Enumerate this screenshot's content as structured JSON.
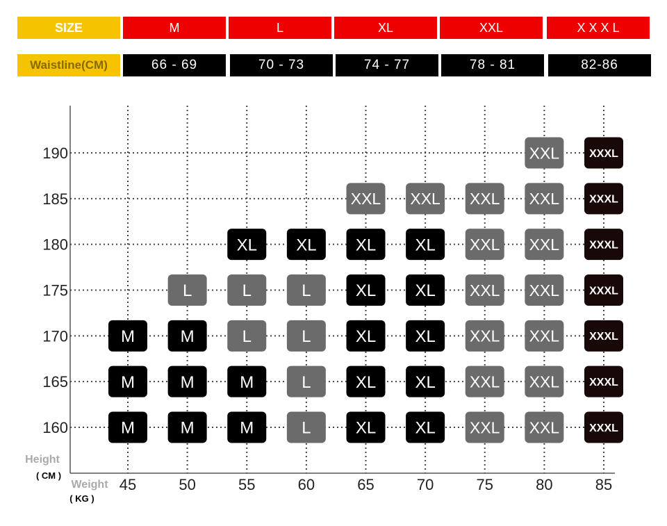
{
  "header": {
    "size_label": "SIZE",
    "waist_label": "Waistline(CM)",
    "sizes": [
      "M",
      "L",
      "XL",
      "XXL",
      "X X X L"
    ],
    "waists": [
      "66 - 69",
      "70 - 73",
      "74 - 77",
      "78 - 81",
      "82-86"
    ]
  },
  "colors": {
    "header_yellow": "#f5c400",
    "header_red": "#ee0000",
    "header_black": "#000000",
    "M": "#000000",
    "L": "#6b6b6b",
    "XL": "#000000",
    "XXL": "#6b6b6b",
    "XXXL": "#180808"
  },
  "chart_data": {
    "type": "table",
    "xlabel": "Weight",
    "xunit": "( KG )",
    "ylabel": "Height",
    "yunit": "( CM )",
    "x": [
      45,
      50,
      55,
      60,
      65,
      70,
      75,
      80,
      85
    ],
    "y": [
      160,
      165,
      170,
      175,
      180,
      185,
      190
    ],
    "grid": true,
    "cells": [
      {
        "x": 45,
        "y": 160,
        "size": "M"
      },
      {
        "x": 50,
        "y": 160,
        "size": "M"
      },
      {
        "x": 55,
        "y": 160,
        "size": "M"
      },
      {
        "x": 60,
        "y": 160,
        "size": "L"
      },
      {
        "x": 65,
        "y": 160,
        "size": "XL"
      },
      {
        "x": 70,
        "y": 160,
        "size": "XL"
      },
      {
        "x": 75,
        "y": 160,
        "size": "XXL"
      },
      {
        "x": 80,
        "y": 160,
        "size": "XXL"
      },
      {
        "x": 85,
        "y": 160,
        "size": "XXXL"
      },
      {
        "x": 45,
        "y": 165,
        "size": "M"
      },
      {
        "x": 50,
        "y": 165,
        "size": "M"
      },
      {
        "x": 55,
        "y": 165,
        "size": "M"
      },
      {
        "x": 60,
        "y": 165,
        "size": "L"
      },
      {
        "x": 65,
        "y": 165,
        "size": "XL"
      },
      {
        "x": 70,
        "y": 165,
        "size": "XL"
      },
      {
        "x": 75,
        "y": 165,
        "size": "XXL"
      },
      {
        "x": 80,
        "y": 165,
        "size": "XXL"
      },
      {
        "x": 85,
        "y": 165,
        "size": "XXXL"
      },
      {
        "x": 45,
        "y": 170,
        "size": "M"
      },
      {
        "x": 50,
        "y": 170,
        "size": "M"
      },
      {
        "x": 55,
        "y": 170,
        "size": "L"
      },
      {
        "x": 60,
        "y": 170,
        "size": "L"
      },
      {
        "x": 65,
        "y": 170,
        "size": "XL"
      },
      {
        "x": 70,
        "y": 170,
        "size": "XL"
      },
      {
        "x": 75,
        "y": 170,
        "size": "XXL"
      },
      {
        "x": 80,
        "y": 170,
        "size": "XXL"
      },
      {
        "x": 85,
        "y": 170,
        "size": "XXXL"
      },
      {
        "x": 50,
        "y": 175,
        "size": "L"
      },
      {
        "x": 55,
        "y": 175,
        "size": "L"
      },
      {
        "x": 60,
        "y": 175,
        "size": "L"
      },
      {
        "x": 65,
        "y": 175,
        "size": "XL"
      },
      {
        "x": 70,
        "y": 175,
        "size": "XL"
      },
      {
        "x": 75,
        "y": 175,
        "size": "XXL"
      },
      {
        "x": 80,
        "y": 175,
        "size": "XXL"
      },
      {
        "x": 85,
        "y": 175,
        "size": "XXXL"
      },
      {
        "x": 55,
        "y": 180,
        "size": "XL"
      },
      {
        "x": 60,
        "y": 180,
        "size": "XL"
      },
      {
        "x": 65,
        "y": 180,
        "size": "XL"
      },
      {
        "x": 70,
        "y": 180,
        "size": "XL"
      },
      {
        "x": 75,
        "y": 180,
        "size": "XXL"
      },
      {
        "x": 80,
        "y": 180,
        "size": "XXL"
      },
      {
        "x": 85,
        "y": 180,
        "size": "XXXL"
      },
      {
        "x": 65,
        "y": 185,
        "size": "XXL"
      },
      {
        "x": 70,
        "y": 185,
        "size": "XXL"
      },
      {
        "x": 75,
        "y": 185,
        "size": "XXL"
      },
      {
        "x": 80,
        "y": 185,
        "size": "XXL"
      },
      {
        "x": 85,
        "y": 185,
        "size": "XXXL"
      },
      {
        "x": 80,
        "y": 190,
        "size": "XXL"
      },
      {
        "x": 85,
        "y": 190,
        "size": "XXXL"
      }
    ]
  }
}
